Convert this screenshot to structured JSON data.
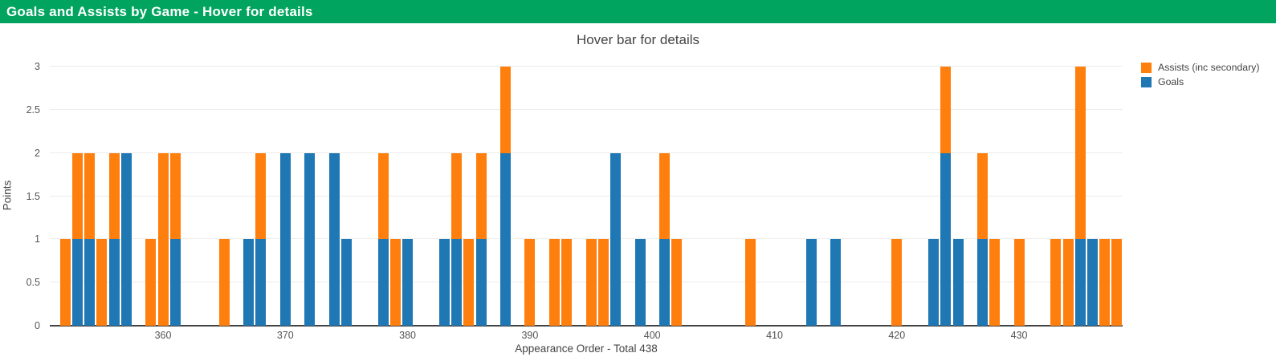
{
  "header": {
    "title": "Goals and Assists by Game - Hover for details",
    "bg_color": "#00a45e",
    "text_color": "#ffffff"
  },
  "chart_data": {
    "type": "bar",
    "stacked": true,
    "title": "Hover bar for details",
    "xlabel": "Appearance Order - Total 438",
    "ylabel": "Points",
    "ylim": [
      0,
      3
    ],
    "yticks": [
      0,
      0.5,
      1,
      1.5,
      2,
      2.5,
      3
    ],
    "xticks": [
      360,
      370,
      380,
      390,
      400,
      410,
      420,
      430
    ],
    "grid": true,
    "legend_position": "top-right",
    "x": [
      352,
      353,
      354,
      355,
      356,
      357,
      359,
      360,
      361,
      365,
      367,
      368,
      370,
      372,
      374,
      375,
      378,
      379,
      380,
      383,
      384,
      385,
      386,
      388,
      390,
      392,
      393,
      395,
      396,
      397,
      399,
      401,
      402,
      408,
      413,
      415,
      420,
      423,
      424,
      425,
      427,
      428,
      430,
      433,
      434,
      435,
      436,
      437,
      438
    ],
    "series": [
      {
        "name": "Goals",
        "color": "#1f77b4",
        "values": [
          0,
          1,
          1,
          0,
          1,
          2,
          0,
          0,
          1,
          0,
          1,
          1,
          2,
          2,
          2,
          1,
          1,
          0,
          1,
          1,
          1,
          0,
          1,
          2,
          0,
          0,
          0,
          0,
          0,
          2,
          1,
          1,
          0,
          0,
          1,
          1,
          0,
          1,
          2,
          1,
          1,
          0,
          0,
          0,
          0,
          1,
          1,
          0,
          0
        ]
      },
      {
        "name": "Assists (inc secondary)",
        "color": "#ff7f0e",
        "values": [
          1,
          1,
          1,
          1,
          1,
          0,
          1,
          2,
          1,
          1,
          0,
          1,
          0,
          0,
          0,
          0,
          1,
          1,
          0,
          0,
          1,
          1,
          1,
          1,
          1,
          1,
          1,
          1,
          1,
          0,
          0,
          1,
          1,
          1,
          0,
          0,
          1,
          0,
          1,
          0,
          1,
          1,
          1,
          1,
          1,
          2,
          0,
          1,
          1
        ]
      }
    ]
  }
}
